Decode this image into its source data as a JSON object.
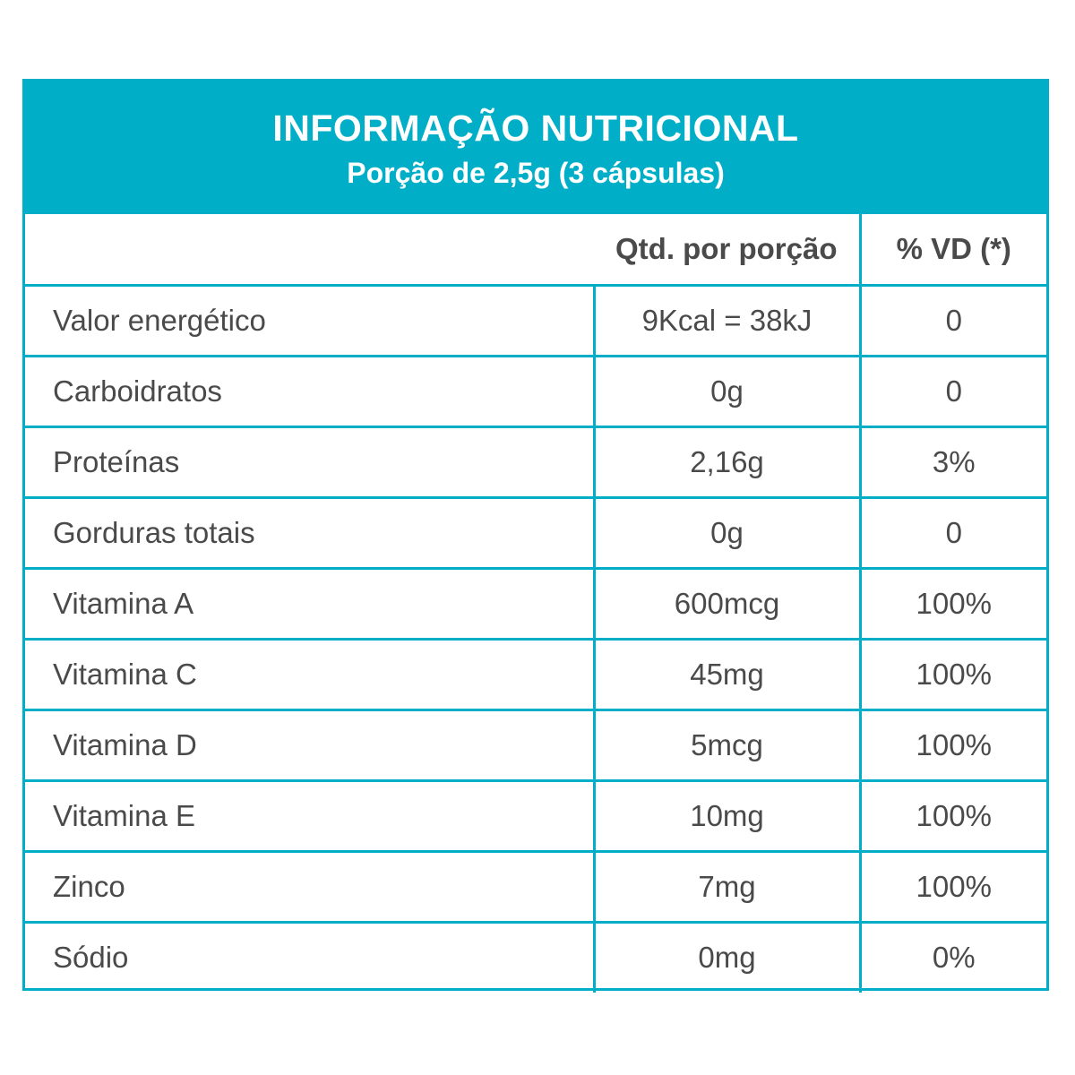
{
  "header": {
    "title": "INFORMAÇÃO NUTRICIONAL",
    "subtitle": "Porção de 2,5g (3 cápsulas)"
  },
  "columns": {
    "nutrient": "",
    "quantity": "Qtd. por porção",
    "daily_value": "% VD (*)"
  },
  "rows": [
    {
      "nutrient": "Valor energético",
      "quantity": "9Kcal = 38kJ",
      "daily_value": "0"
    },
    {
      "nutrient": "Carboidratos",
      "quantity": "0g",
      "daily_value": "0"
    },
    {
      "nutrient": "Proteínas",
      "quantity": "2,16g",
      "daily_value": "3%"
    },
    {
      "nutrient": "Gorduras totais",
      "quantity": "0g",
      "daily_value": "0"
    },
    {
      "nutrient": "Vitamina A",
      "quantity": "600mcg",
      "daily_value": "100%"
    },
    {
      "nutrient": "Vitamina C",
      "quantity": "45mg",
      "daily_value": "100%"
    },
    {
      "nutrient": "Vitamina D",
      "quantity": "5mcg",
      "daily_value": "100%"
    },
    {
      "nutrient": "Vitamina E",
      "quantity": "10mg",
      "daily_value": "100%"
    },
    {
      "nutrient": "Zinco",
      "quantity": "7mg",
      "daily_value": "100%"
    },
    {
      "nutrient": "Sódio",
      "quantity": "0mg",
      "daily_value": "0%"
    }
  ],
  "colors": {
    "accent": "#00aec7",
    "text": "#4a4a4a"
  }
}
